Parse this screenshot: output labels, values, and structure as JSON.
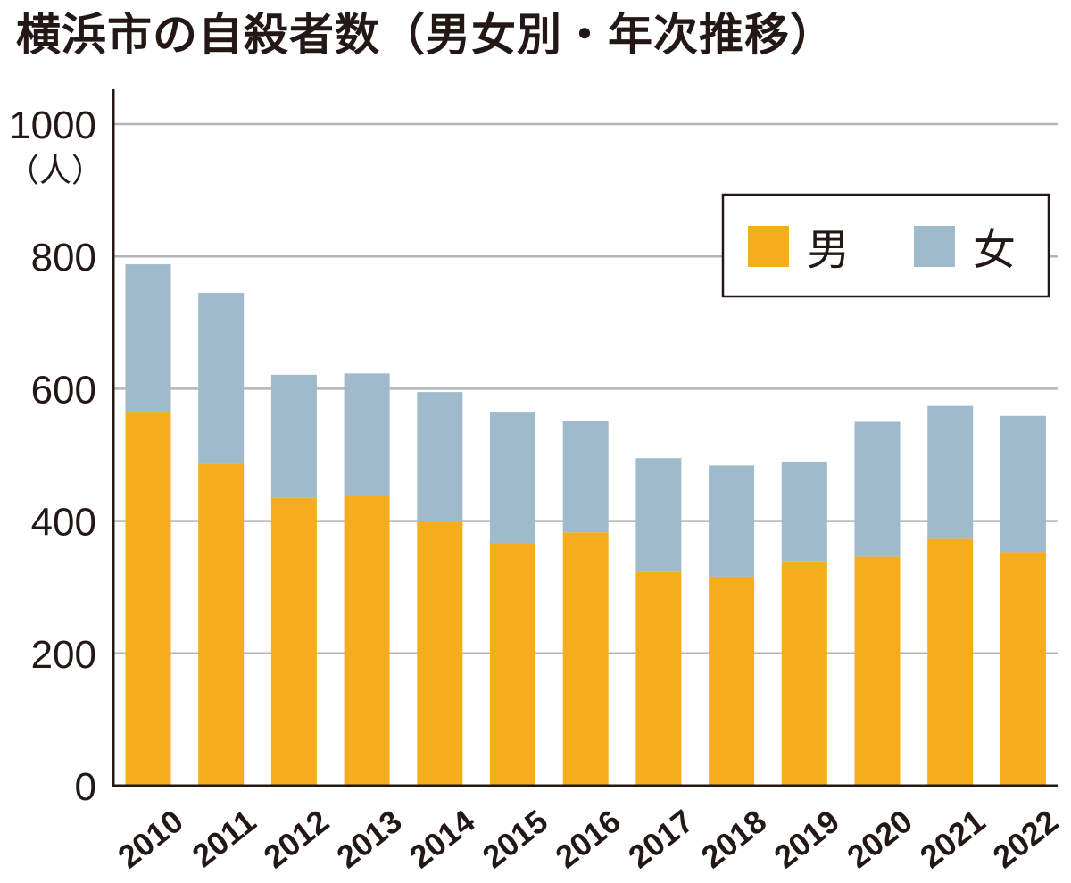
{
  "chart_data": {
    "type": "bar",
    "stacked": true,
    "title": "横浜市の自殺者数（男女別・年次推移）",
    "ylabel": "（人）",
    "ylim": [
      0,
      1000
    ],
    "yticks": [
      0,
      200,
      400,
      600,
      800,
      1000
    ],
    "grid": true,
    "legend_position": "top-right",
    "categories": [
      "2010",
      "2011",
      "2012",
      "2013",
      "2014",
      "2015",
      "2016",
      "2017",
      "2018",
      "2019",
      "2020",
      "2021",
      "2022"
    ],
    "series": [
      {
        "name": "男",
        "color": "#F5AD1E",
        "values": [
          564,
          487,
          435,
          438,
          399,
          367,
          383,
          323,
          316,
          339,
          346,
          373,
          353
        ]
      },
      {
        "name": "女",
        "color": "#9FBACA",
        "values": [
          224,
          258,
          186,
          185,
          196,
          197,
          168,
          172,
          168,
          151,
          204,
          201,
          206
        ]
      }
    ]
  }
}
